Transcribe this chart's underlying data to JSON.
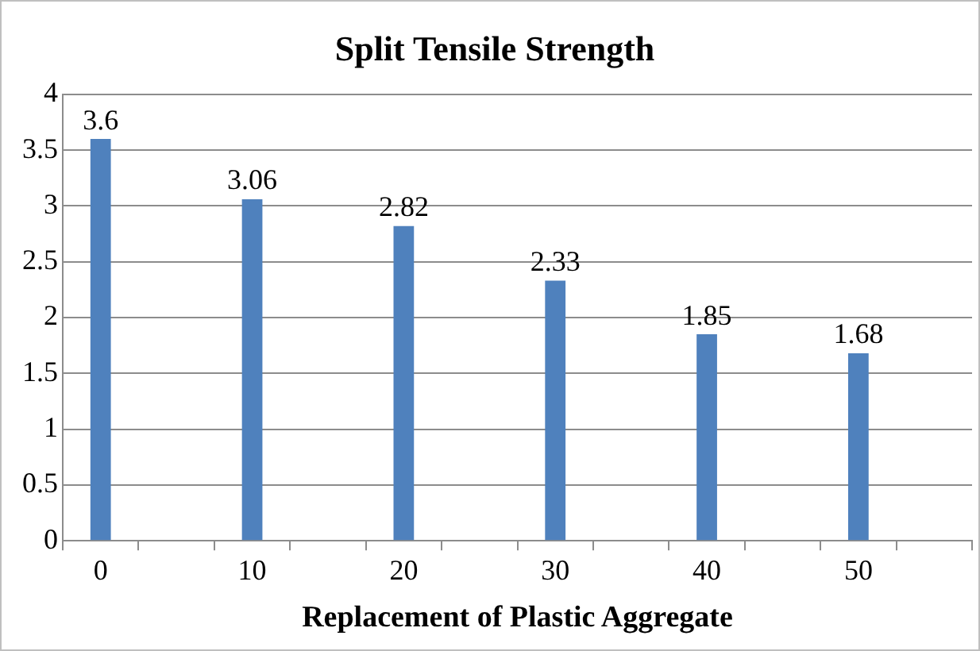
{
  "chart_data": {
    "type": "bar",
    "title": "Split Tensile Strength",
    "xlabel": "Replacement of Plastic Aggregate",
    "categories": [
      "0",
      null,
      "10",
      null,
      "20",
      null,
      "30",
      null,
      "40",
      null,
      "50",
      null
    ],
    "values": [
      3.6,
      null,
      3.06,
      null,
      2.82,
      null,
      2.33,
      null,
      1.85,
      null,
      1.68,
      null
    ],
    "color": "#4f81bd",
    "ylim": [
      0,
      4
    ],
    "yticks": [
      0,
      0.5,
      1,
      1.5,
      2,
      2.5,
      3,
      3.5,
      4
    ],
    "grid": "y",
    "legend": false,
    "data_labels": true
  }
}
